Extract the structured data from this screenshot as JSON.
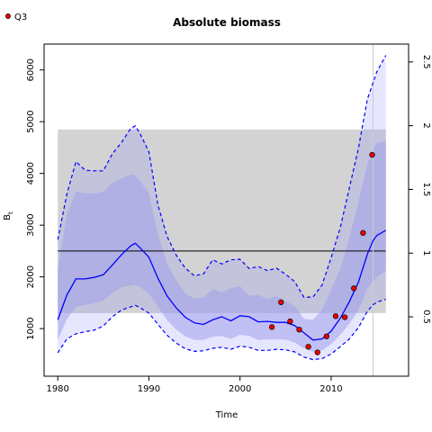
{
  "chart_data": {
    "type": "line",
    "title": "Absolute biomass",
    "xlabel": "Time",
    "ylabel": "B",
    "ylabel_subscript": "t",
    "ylabel_right": "",
    "xlim": [
      1978.5,
      2018.5
    ],
    "ylim": [
      80,
      6500
    ],
    "ylim_right": [
      0.034,
      2.64
    ],
    "x_ticks": [
      1980,
      1990,
      2000,
      2010
    ],
    "y_ticks": [
      1000,
      2000,
      3000,
      4000,
      5000,
      6000
    ],
    "y_ticks_right": [
      0.5,
      1,
      1.5,
      2,
      2.5
    ],
    "legend": {
      "position": "top-left",
      "entries": [
        {
          "name": "Q3",
          "marker": "red-circle"
        }
      ]
    },
    "grid": false,
    "reference_band": {
      "x": [
        1980,
        2016
      ],
      "y": [
        1300,
        4850
      ],
      "color": "#d3d3d3"
    },
    "reference_line": {
      "y": 2500,
      "color": "#000000"
    },
    "last_year_marker": {
      "x": 2014.6,
      "color": "#cccccc"
    },
    "colors": {
      "estimate": "#0000ff",
      "ci_inner": "rgba(160,160,235,0.55)",
      "ci_outer": "rgba(140,140,255,0.22)",
      "index_points": "#ee0000"
    },
    "series": [
      {
        "name": "",
        "role": "estimate",
        "x": [
          1980,
          1981,
          1982,
          1983,
          1984,
          1985,
          1986,
          1987,
          1988,
          1988.5,
          1989,
          1990,
          1991,
          1992,
          1993,
          1994,
          1995,
          1996,
          1997,
          1998,
          1999,
          2000,
          2001,
          2002,
          2003,
          2004,
          2005,
          2006,
          2007,
          2008,
          2009,
          2010,
          2011,
          2012,
          2013,
          2014,
          2014.6,
          2015,
          2016
        ],
        "y": [
          1170,
          1650,
          1960,
          1960,
          1990,
          2040,
          2230,
          2430,
          2600,
          2650,
          2570,
          2380,
          1970,
          1630,
          1400,
          1220,
          1110,
          1080,
          1170,
          1230,
          1150,
          1250,
          1230,
          1130,
          1140,
          1120,
          1120,
          1060,
          920,
          780,
          800,
          950,
          1200,
          1520,
          1900,
          2450,
          2700,
          2800,
          2900
        ]
      },
      {
        "name": "",
        "role": "ci_upper",
        "x": [
          1980,
          1981,
          1982,
          1983,
          1984,
          1985,
          1986,
          1987,
          1988,
          1988.5,
          1989,
          1990,
          1991,
          1992,
          1993,
          1994,
          1995,
          1996,
          1997,
          1998,
          1999,
          2000,
          2001,
          2002,
          2003,
          2004,
          2005,
          2006,
          2007,
          2008,
          2009,
          2010,
          2011,
          2012,
          2013,
          2014,
          2014.6,
          2015,
          2016
        ],
        "y": [
          2720,
          3600,
          4230,
          4060,
          4050,
          4050,
          4380,
          4600,
          4870,
          4920,
          4780,
          4420,
          3380,
          2780,
          2420,
          2170,
          2020,
          2060,
          2330,
          2250,
          2330,
          2340,
          2160,
          2200,
          2120,
          2170,
          2050,
          1910,
          1610,
          1610,
          1840,
          2370,
          2950,
          3720,
          4490,
          5450,
          5750,
          5960,
          6280
        ]
      },
      {
        "name": "",
        "role": "ci_lower",
        "x": [
          1980,
          1981,
          1982,
          1983,
          1984,
          1985,
          1986,
          1987,
          1988,
          1988.5,
          1989,
          1990,
          1991,
          1992,
          1993,
          1994,
          1995,
          1996,
          1997,
          1998,
          1999,
          2000,
          2001,
          2002,
          2003,
          2004,
          2005,
          2006,
          2007,
          2008,
          2009,
          2010,
          2011,
          2012,
          2013,
          2014,
          2014.6,
          2015,
          2016
        ],
        "y": [
          530,
          800,
          900,
          940,
          970,
          1050,
          1230,
          1360,
          1420,
          1450,
          1410,
          1300,
          1080,
          870,
          720,
          610,
          560,
          570,
          620,
          640,
          600,
          660,
          640,
          580,
          580,
          600,
          590,
          550,
          450,
          400,
          420,
          510,
          650,
          800,
          1020,
          1340,
          1460,
          1510,
          1570
        ]
      },
      {
        "name": "Q3",
        "role": "index_points",
        "x": [
          2003.5,
          2004.5,
          2005.5,
          2006.5,
          2007.5,
          2008.5,
          2009.5,
          2010.5,
          2011.5,
          2012.5,
          2013.5,
          2014.5
        ],
        "y": [
          1030,
          1510,
          1140,
          980,
          650,
          540,
          850,
          1240,
          1220,
          1780,
          2850,
          4360
        ]
      }
    ],
    "bands": {
      "inner_upper": [
        2150,
        3200,
        3650,
        3620,
        3610,
        3640,
        3820,
        3900,
        3980,
        3960,
        3860,
        3620,
        2820,
        2260,
        1930,
        1680,
        1580,
        1600,
        1770,
        1700,
        1780,
        1820,
        1630,
        1660,
        1570,
        1630,
        1530,
        1440,
        1190,
        1170,
        1360,
        1760,
        2150,
        2760,
        3450,
        4200,
        4480,
        4580,
        4640
      ],
      "inner_lower": [
        780,
        1180,
        1420,
        1460,
        1490,
        1540,
        1690,
        1800,
        1830,
        1840,
        1810,
        1680,
        1420,
        1160,
        980,
        850,
        780,
        780,
        840,
        860,
        800,
        880,
        860,
        780,
        790,
        790,
        790,
        730,
        620,
        550,
        580,
        700,
        880,
        1090,
        1360,
        1780,
        1920,
        1990,
        2110
      ]
    }
  }
}
